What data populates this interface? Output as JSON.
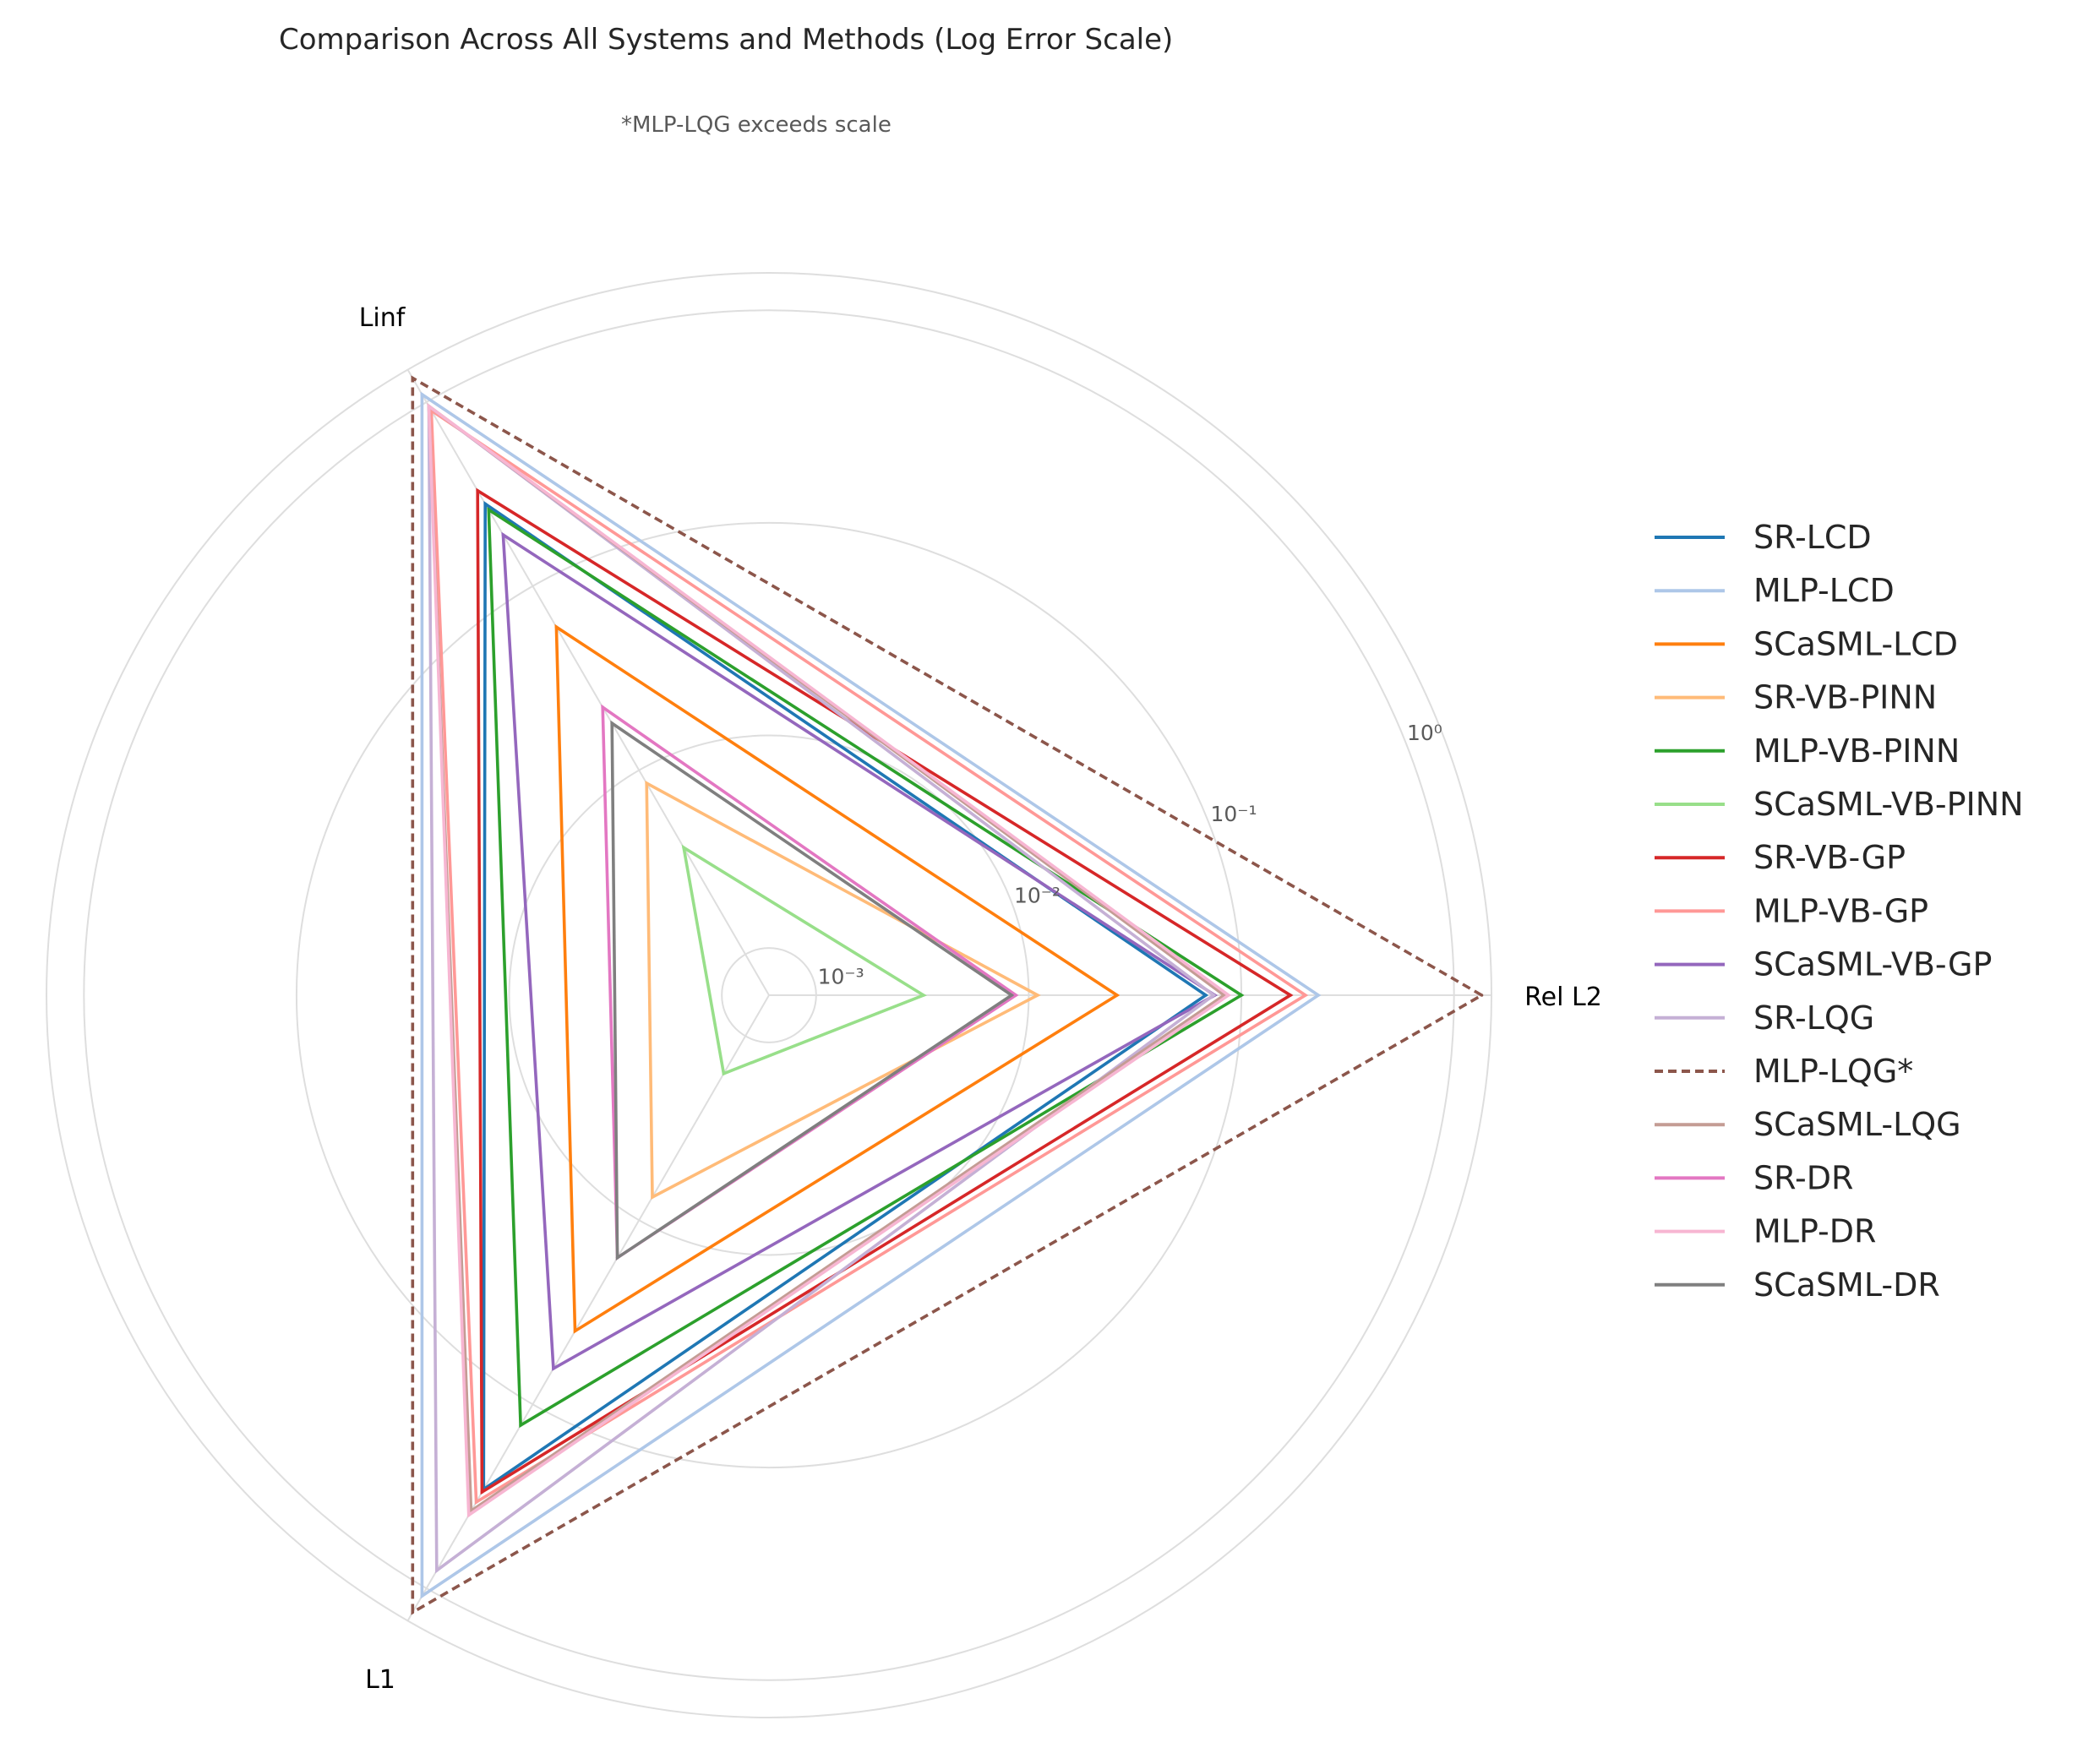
{
  "chart_data": {
    "type": "radar",
    "title": "Comparison Across All Systems and Methods (Log Error Scale)",
    "subtitle": "*MLP-LQG exceeds scale",
    "axes": [
      "Rel L2",
      "Linf",
      "L1"
    ],
    "scale": "log",
    "rlim": [
      0.0006,
      1.5
    ],
    "rticks": [
      {
        "value": 0.001,
        "label": "10⁻³"
      },
      {
        "value": 0.01,
        "label": "10⁻²"
      },
      {
        "value": 0.1,
        "label": "10⁻¹"
      },
      {
        "value": 1,
        "label": "10⁰"
      }
    ],
    "grid": true,
    "legend_position": "right",
    "series": [
      {
        "name": "SR-LCD",
        "color": "#1f77b4",
        "dash": false,
        "values": [
          0.068,
          0.28,
          0.29
        ]
      },
      {
        "name": "MLP-LCD",
        "color": "#aec7e8",
        "dash": false,
        "values": [
          0.23,
          1.1,
          1.1
        ]
      },
      {
        "name": "SCaSML-LCD",
        "color": "#ff7f0e",
        "dash": false,
        "values": [
          0.026,
          0.06,
          0.04
        ]
      },
      {
        "name": "SR-VB-PINN",
        "color": "#ffbb78",
        "dash": false,
        "values": [
          0.011,
          0.0085,
          0.0075
        ]
      },
      {
        "name": "MLP-VB-PINN",
        "color": "#2ca02c",
        "dash": false,
        "values": [
          0.1,
          0.26,
          0.13
        ]
      },
      {
        "name": "SCaSML-VB-PINN",
        "color": "#98df8a",
        "dash": false,
        "values": [
          0.0032,
          0.0038,
          0.0016
        ]
      },
      {
        "name": "SR-VB-GP",
        "color": "#d62728",
        "dash": false,
        "values": [
          0.17,
          0.33,
          0.3
        ]
      },
      {
        "name": "MLP-VB-GP",
        "color": "#ff9896",
        "dash": false,
        "values": [
          0.2,
          0.9,
          0.34
        ]
      },
      {
        "name": "SCaSML-VB-GP",
        "color": "#9467bd",
        "dash": false,
        "values": [
          0.075,
          0.19,
          0.064
        ]
      },
      {
        "name": "SR-LQG",
        "color": "#c5b0d5",
        "dash": false,
        "values": [
          0.074,
          0.95,
          0.8
        ]
      },
      {
        "name": "MLP-LQG*",
        "color": "#8c564b",
        "dash": true,
        "values": [
          1.35,
          1.35,
          1.35
        ]
      },
      {
        "name": "SCaSML-LQG",
        "color": "#c49c94",
        "dash": false,
        "values": [
          0.083,
          0.95,
          0.38
        ]
      },
      {
        "name": "SR-DR",
        "color": "#e377c2",
        "dash": false,
        "values": [
          0.0087,
          0.022,
          0.016
        ]
      },
      {
        "name": "MLP-DR",
        "color": "#f7b6d2",
        "dash": false,
        "values": [
          0.087,
          0.95,
          0.4
        ]
      },
      {
        "name": "SCaSML-DR",
        "color": "#7f7f7f",
        "dash": false,
        "values": [
          0.0083,
          0.018,
          0.016
        ]
      }
    ]
  }
}
